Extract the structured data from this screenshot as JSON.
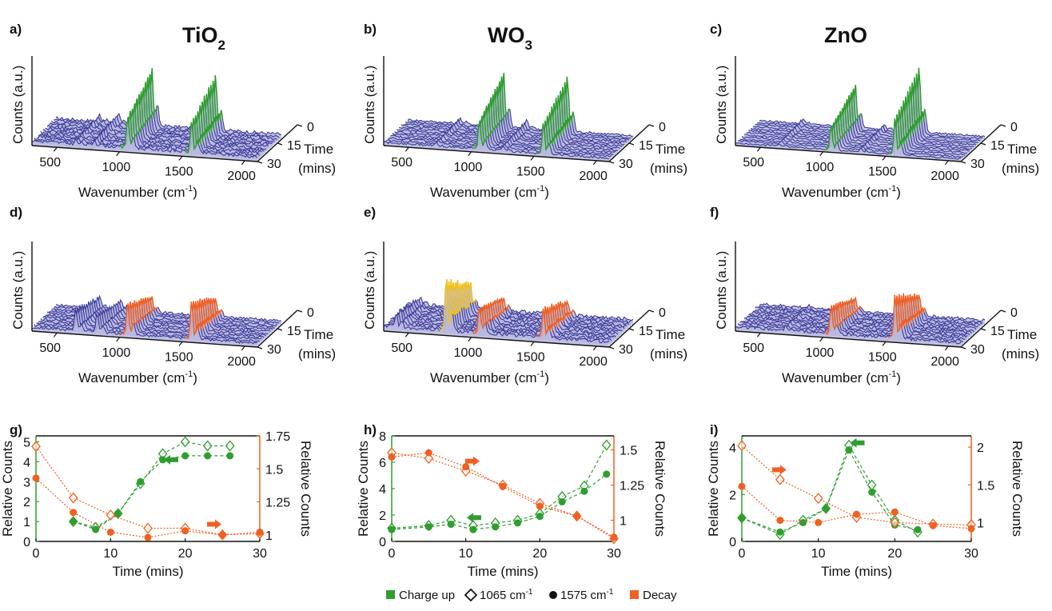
{
  "colors": {
    "axis": "#111111",
    "waterfall_fill": "#b9b8df",
    "waterfall_line": "#3b3a9a",
    "charge_green": "#2f9e2f",
    "decay_orange": "#f06022",
    "yellow_peak": "#f2c21b",
    "cyan_edge": "#31a6d9"
  },
  "titles": [
    {
      "base": "TiO",
      "sub": "2"
    },
    {
      "base": "WO",
      "sub": "3"
    },
    {
      "base": "ZnO",
      "sub": ""
    }
  ],
  "waterfall_axes": {
    "xlabel_base": "Wavenumber (cm",
    "xlabel_sup": "-1",
    "xlabel_end": ")",
    "ylabel": "Counts (a.u.)",
    "xticks": [
      "500",
      "1000",
      "1500",
      "2000"
    ],
    "time_ticks": [
      "0",
      "15",
      "30"
    ],
    "time_label_1": "Time",
    "time_label_2": "(mins)"
  },
  "time_axes": {
    "xlabel": "Time (mins)",
    "xticks": [
      "0",
      "10",
      "20",
      "30"
    ],
    "ylabel_left": "Relative Counts",
    "ylabel_right": "Relative Counts"
  },
  "legend": {
    "charge": "Charge up",
    "diamond_base": "1065 cm",
    "circle_base": "1575 cm",
    "sup": "-1",
    "decay": "Decay"
  },
  "chart_data": [
    {
      "panel": "a)",
      "type": "area",
      "material": "TiO2",
      "phase": "charge up",
      "xlabel": "Wavenumber (cm-1)",
      "ylabel": "Counts (a.u.)",
      "zlabel": "Time (mins)",
      "xlim": [
        300,
        2100
      ],
      "time_ticks": [
        0,
        15,
        30
      ],
      "peaks_cm-1": [
        1065,
        1575
      ],
      "highlight": "green"
    },
    {
      "panel": "b)",
      "type": "area",
      "material": "WO3",
      "phase": "charge up",
      "xlabel": "Wavenumber (cm-1)",
      "ylabel": "Counts (a.u.)",
      "zlabel": "Time (mins)",
      "xlim": [
        300,
        2100
      ],
      "time_ticks": [
        0,
        15,
        30
      ],
      "peaks_cm-1": [
        1065,
        1575
      ],
      "highlight": "green"
    },
    {
      "panel": "c)",
      "type": "area",
      "material": "ZnO",
      "phase": "charge up",
      "xlabel": "Wavenumber (cm-1)",
      "ylabel": "Counts (a.u.)",
      "zlabel": "Time (mins)",
      "xlim": [
        300,
        2100
      ],
      "time_ticks": [
        0,
        15,
        30
      ],
      "peaks_cm-1": [
        1065,
        1575
      ],
      "highlight": "green"
    },
    {
      "panel": "d)",
      "type": "area",
      "material": "TiO2",
      "phase": "decay",
      "xlabel": "Wavenumber (cm-1)",
      "ylabel": "Counts (a.u.)",
      "zlabel": "Time (mins)",
      "xlim": [
        300,
        2100
      ],
      "time_ticks": [
        0,
        15,
        30
      ],
      "peaks_cm-1": [
        1065,
        1575
      ],
      "highlight": "orange"
    },
    {
      "panel": "e)",
      "type": "area",
      "material": "WO3",
      "phase": "decay",
      "xlabel": "Wavenumber (cm-1)",
      "ylabel": "Counts (a.u.)",
      "zlabel": "Time (mins)",
      "xlim": [
        300,
        2100
      ],
      "time_ticks": [
        0,
        15,
        30
      ],
      "peaks_cm-1": [
        800,
        1065,
        1575
      ],
      "highlight": "orange"
    },
    {
      "panel": "f)",
      "type": "area",
      "material": "ZnO",
      "phase": "decay",
      "xlabel": "Wavenumber (cm-1)",
      "ylabel": "Counts (a.u.)",
      "zlabel": "Time (mins)",
      "xlim": [
        300,
        2100
      ],
      "time_ticks": [
        0,
        15,
        30
      ],
      "peaks_cm-1": [
        1065,
        1575
      ],
      "highlight": "orange"
    },
    {
      "panel": "g)",
      "type": "scatter",
      "material": "TiO2",
      "xlabel": "Time (mins)",
      "ylabel": "Relative Counts",
      "y2label": "Relative Counts",
      "xlim": [
        0,
        30
      ],
      "ylim": [
        0,
        5.3
      ],
      "y2lim": [
        0.95,
        1.75
      ],
      "yticks": [
        0,
        1,
        2,
        3,
        4,
        5
      ],
      "y2ticks": [
        1,
        1.25,
        1.5,
        1.75
      ],
      "series": [
        {
          "name": "Charge up 1065 cm-1",
          "axis": "left",
          "marker": "diamond",
          "x": [
            5,
            8,
            11,
            14,
            17,
            20,
            23,
            26
          ],
          "y": [
            1.0,
            0.7,
            1.4,
            2.9,
            4.4,
            5.0,
            4.8,
            4.8
          ]
        },
        {
          "name": "Charge up 1575 cm-1",
          "axis": "left",
          "marker": "circle",
          "x": [
            5,
            8,
            11,
            14,
            17,
            20,
            23,
            26
          ],
          "y": [
            1.0,
            0.6,
            1.4,
            3.0,
            4.1,
            4.3,
            4.3,
            4.3
          ]
        },
        {
          "name": "Decay 1065 cm-1",
          "axis": "right",
          "marker": "diamond",
          "x": [
            0,
            5,
            10,
            15,
            20,
            25,
            30
          ],
          "y": [
            1.67,
            1.28,
            1.15,
            1.05,
            1.05,
            1.0,
            1.01
          ]
        },
        {
          "name": "Decay 1575 cm-1",
          "axis": "right",
          "marker": "circle",
          "x": [
            0,
            5,
            10,
            15,
            20,
            25,
            30
          ],
          "y": [
            1.43,
            1.17,
            1.02,
            0.98,
            1.03,
            1.0,
            1.02
          ]
        }
      ]
    },
    {
      "panel": "h)",
      "type": "scatter",
      "material": "WO3",
      "xlabel": "Time (mins)",
      "ylabel": "Relative Counts",
      "y2label": "Relative Counts",
      "xlim": [
        0,
        30
      ],
      "ylim": [
        0,
        8
      ],
      "y2lim": [
        0.85,
        1.6
      ],
      "yticks": [
        0,
        2,
        4,
        6,
        8
      ],
      "y2ticks": [
        1,
        1.25,
        1.5
      ],
      "series": [
        {
          "name": "Charge up 1065 cm-1",
          "axis": "left",
          "marker": "diamond",
          "x": [
            0,
            5,
            8,
            11,
            14,
            17,
            20,
            23,
            26,
            29
          ],
          "y": [
            1.0,
            1.2,
            1.6,
            1.2,
            1.4,
            1.6,
            2.1,
            3.4,
            4.2,
            7.3
          ]
        },
        {
          "name": "Charge up 1575 cm-1",
          "axis": "left",
          "marker": "circle",
          "x": [
            0,
            5,
            8,
            11,
            14,
            17,
            20,
            23,
            26,
            29
          ],
          "y": [
            0.9,
            1.1,
            1.3,
            0.9,
            1.1,
            1.4,
            1.9,
            3.0,
            3.8,
            5.1
          ]
        },
        {
          "name": "Decay 1065 cm-1",
          "axis": "right",
          "marker": "diamond",
          "x": [
            0,
            5,
            10,
            15,
            20,
            25,
            30
          ],
          "y": [
            1.48,
            1.44,
            1.35,
            1.25,
            1.12,
            1.03,
            0.87
          ]
        },
        {
          "name": "Decay 1575 cm-1",
          "axis": "right",
          "marker": "circle",
          "x": [
            0,
            5,
            10,
            15,
            20,
            25,
            30
          ],
          "y": [
            1.45,
            1.48,
            1.38,
            1.24,
            1.1,
            1.03,
            0.88
          ]
        }
      ]
    },
    {
      "panel": "i)",
      "type": "scatter",
      "material": "ZnO",
      "xlabel": "Time (mins)",
      "ylabel": "Relative Counts",
      "y2label": "Relative Counts",
      "xlim": [
        0,
        30
      ],
      "ylim": [
        0,
        4.5
      ],
      "y2lim": [
        0.75,
        2.15
      ],
      "yticks": [
        0,
        2,
        4
      ],
      "y2ticks": [
        1,
        1.5,
        2
      ],
      "series": [
        {
          "name": "Charge up 1065 cm-1",
          "axis": "left",
          "marker": "diamond",
          "x": [
            0,
            5,
            8,
            11,
            14,
            17,
            20,
            23
          ],
          "y": [
            1.0,
            0.3,
            0.9,
            1.4,
            4.1,
            2.4,
            0.9,
            0.4
          ]
        },
        {
          "name": "Charge up 1575 cm-1",
          "axis": "left",
          "marker": "circle",
          "x": [
            0,
            5,
            8,
            11,
            14,
            17,
            20,
            23
          ],
          "y": [
            1.0,
            0.4,
            0.8,
            1.4,
            3.9,
            2.1,
            0.7,
            0.5
          ]
        },
        {
          "name": "Decay 1065 cm-1",
          "axis": "right",
          "marker": "diamond",
          "x": [
            0,
            5,
            10,
            15,
            20,
            25,
            30
          ],
          "y": [
            2.02,
            1.57,
            1.32,
            1.07,
            1.0,
            0.98,
            0.97
          ]
        },
        {
          "name": "Decay 1575 cm-1",
          "axis": "right",
          "marker": "circle",
          "x": [
            0,
            5,
            10,
            15,
            20,
            25,
            30
          ],
          "y": [
            1.48,
            1.03,
            1.0,
            1.11,
            1.14,
            0.96,
            0.92
          ]
        }
      ]
    }
  ]
}
